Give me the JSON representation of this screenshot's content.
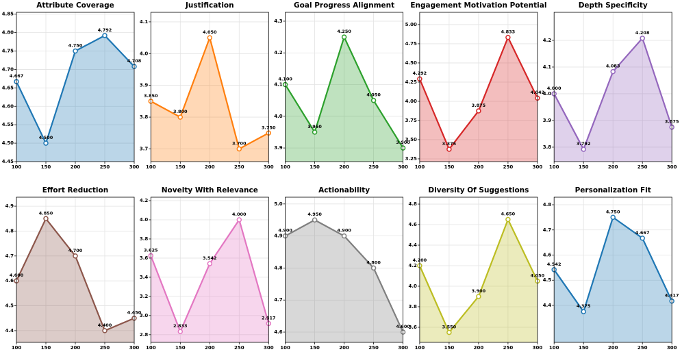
{
  "chart_data": [
    {
      "type": "line",
      "title": "Attribute Coverage",
      "x": [
        100,
        150,
        200,
        250,
        300
      ],
      "values": [
        4.667,
        4.5,
        4.75,
        4.792,
        4.708
      ],
      "value_labels": [
        "4.667",
        "4.500",
        "4.750",
        "4.792",
        "4.708"
      ],
      "color": "#1f77b4",
      "xlim": [
        100,
        300
      ],
      "xticks": [
        100,
        150,
        200,
        250,
        300
      ],
      "ylim": [
        4.45,
        4.855
      ],
      "yticks": [
        4.45,
        {
          "value": 4.5,
          "label": "4.50"
        },
        4.55,
        {
          "value": 4.6,
          "label": "4.60"
        },
        4.65,
        {
          "value": 4.7,
          "label": "4.70"
        },
        4.75,
        {
          "value": 4.8,
          "label": "4.80"
        },
        4.85
      ],
      "grid": true
    },
    {
      "type": "line",
      "title": "Justification",
      "x": [
        100,
        150,
        200,
        250,
        300
      ],
      "values": [
        3.85,
        3.8,
        4.05,
        3.7,
        3.75
      ],
      "value_labels": [
        "3.850",
        "3.800",
        "4.050",
        "3.700",
        "3.750"
      ],
      "color": "#ff7f0e",
      "xlim": [
        100,
        300
      ],
      "xticks": [
        100,
        150,
        200,
        250,
        300
      ],
      "ylim": [
        3.66,
        4.13
      ],
      "yticks": [
        3.7,
        3.8,
        3.9,
        {
          "value": 4.0,
          "label": "4.0"
        },
        4.1
      ],
      "grid": true
    },
    {
      "type": "line",
      "title": "Goal Progress Alignment",
      "x": [
        100,
        150,
        200,
        250,
        300
      ],
      "values": [
        4.1,
        3.95,
        4.25,
        4.05,
        3.9
      ],
      "value_labels": [
        "4.100",
        "3.950",
        "4.250",
        "4.050",
        "3.900"
      ],
      "color": "#2ca02c",
      "xlim": [
        100,
        300
      ],
      "xticks": [
        100,
        150,
        200,
        250,
        300
      ],
      "ylim": [
        3.857,
        4.328
      ],
      "yticks": [
        3.9,
        {
          "value": 4.0,
          "label": "4.0"
        },
        4.1,
        4.2,
        4.3
      ],
      "grid": true
    },
    {
      "type": "line",
      "title": "Engagement Motivation Potential",
      "x": [
        100,
        150,
        200,
        250,
        300
      ],
      "values": [
        4.292,
        3.375,
        3.875,
        4.833,
        4.042
      ],
      "value_labels": [
        "4.292",
        "3.375",
        "3.875",
        "4.833",
        "4.042"
      ],
      "color": "#d62728",
      "xlim": [
        100,
        300
      ],
      "xticks": [
        100,
        150,
        200,
        250,
        300
      ],
      "ylim": [
        3.214,
        5.16
      ],
      "yticks": [
        3.25,
        {
          "value": 3.5,
          "label": "3.50"
        },
        3.75,
        {
          "value": 4.0,
          "label": "4.00"
        },
        4.25,
        {
          "value": 4.5,
          "label": "4.50"
        },
        4.75,
        {
          "value": 5.0,
          "label": "5.00"
        }
      ],
      "grid": true
    },
    {
      "type": "line",
      "title": "Depth Specificity",
      "x": [
        100,
        150,
        200,
        250,
        300
      ],
      "values": [
        4.0,
        3.792,
        4.083,
        4.208,
        3.875
      ],
      "value_labels": [
        "4.000",
        "3.792",
        "4.083",
        "4.208",
        "3.875"
      ],
      "color": "#9467bd",
      "xlim": [
        100,
        300
      ],
      "xticks": [
        100,
        150,
        200,
        250,
        300
      ],
      "ylim": [
        3.746,
        4.305
      ],
      "yticks": [
        3.8,
        3.9,
        {
          "value": 4.0,
          "label": "4.0"
        },
        4.1,
        4.2
      ],
      "grid": true
    },
    {
      "type": "line",
      "title": "Effort Reduction",
      "x": [
        100,
        150,
        200,
        250,
        300
      ],
      "values": [
        4.6,
        4.85,
        4.7,
        4.4,
        4.45
      ],
      "value_labels": [
        "4.600",
        "4.850",
        "4.700",
        "4.400",
        "4.450"
      ],
      "color": "#8c564b",
      "xlim": [
        100,
        300
      ],
      "xticks": [
        100,
        150,
        200,
        250,
        300
      ],
      "ylim": [
        4.353,
        4.936
      ],
      "yticks": [
        4.4,
        4.5,
        4.6,
        4.7,
        4.8,
        4.9
      ],
      "grid": true
    },
    {
      "type": "line",
      "title": "Novelty With Relevance",
      "x": [
        100,
        150,
        200,
        250,
        300
      ],
      "values": [
        3.625,
        2.833,
        3.542,
        4.0,
        2.917
      ],
      "value_labels": [
        "3.625",
        "2.833",
        "3.542",
        "4.000",
        "2.917"
      ],
      "color": "#e377c2",
      "xlim": [
        100,
        300
      ],
      "xticks": [
        100,
        150,
        200,
        250,
        300
      ],
      "ylim": [
        2.72,
        4.236
      ],
      "yticks": [
        2.8,
        {
          "value": 3.0,
          "label": "3.0"
        },
        3.2,
        3.4,
        3.6,
        3.8,
        {
          "value": 4.0,
          "label": "4.0"
        },
        4.2
      ],
      "grid": true
    },
    {
      "type": "line",
      "title": "Actionability",
      "x": [
        100,
        150,
        200,
        250,
        300
      ],
      "values": [
        4.9,
        4.95,
        4.9,
        4.8,
        4.6
      ],
      "value_labels": [
        "4.900",
        "4.950",
        "4.900",
        "4.800",
        "4.600"
      ],
      "color": "#7f7f7f",
      "xlim": [
        100,
        300
      ],
      "xticks": [
        100,
        150,
        200,
        250,
        300
      ],
      "ylim": [
        4.568,
        5.021
      ],
      "yticks": [
        4.6,
        4.7,
        4.8,
        4.9,
        {
          "value": 5.0,
          "label": "5.0"
        }
      ],
      "grid": true
    },
    {
      "type": "line",
      "title": "Diversity Of Suggestions",
      "x": [
        100,
        150,
        200,
        250,
        300
      ],
      "values": [
        4.2,
        3.55,
        3.9,
        4.65,
        4.05
      ],
      "value_labels": [
        "4.200",
        "3.550",
        "3.900",
        "4.650",
        "4.050"
      ],
      "color": "#bcbd22",
      "xlim": [
        100,
        300
      ],
      "xticks": [
        100,
        150,
        200,
        250,
        300
      ],
      "ylim": [
        3.453,
        4.867
      ],
      "yticks": [
        3.6,
        3.8,
        {
          "value": 4.0,
          "label": "4.0"
        },
        4.2,
        4.4,
        4.6,
        4.8
      ],
      "grid": true
    },
    {
      "type": "line",
      "title": "Personalization Fit",
      "x": [
        100,
        150,
        200,
        250,
        300
      ],
      "values": [
        4.542,
        4.375,
        4.75,
        4.667,
        4.417
      ],
      "value_labels": [
        "4.542",
        "4.375",
        "4.750",
        "4.667",
        "4.417"
      ],
      "color": "#1f77b4",
      "xlim": [
        100,
        300
      ],
      "xticks": [
        100,
        150,
        200,
        250,
        300
      ],
      "ylim": [
        4.253,
        4.83
      ],
      "yticks": [
        4.4,
        4.5,
        4.6,
        4.7,
        4.8
      ],
      "grid": true
    }
  ]
}
